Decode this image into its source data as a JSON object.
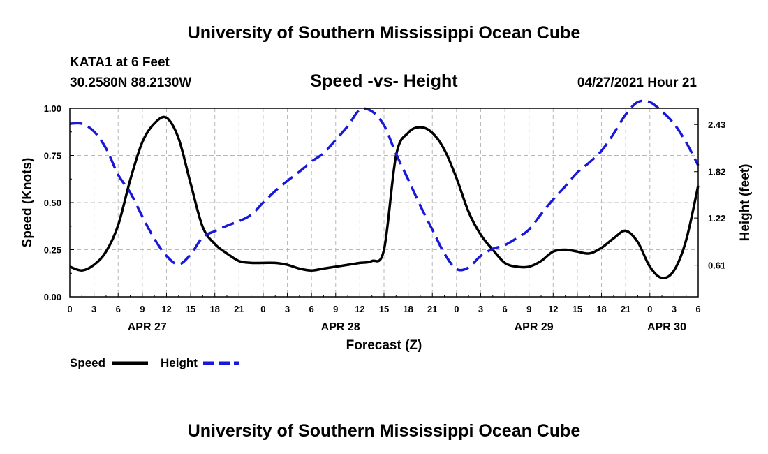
{
  "header": {
    "top_title": "University of Southern Mississippi Ocean Cube",
    "bottom_title": "University of Southern Mississippi Ocean Cube",
    "station": "KATA1 at 6 Feet",
    "coords": "30.2580N  88.2130W",
    "datetime": "04/27/2021 Hour 21"
  },
  "chart_data": {
    "type": "line",
    "title": "Speed -vs- Height",
    "xlabel": "Forecast (Z)",
    "ylabel": "Speed (Knots)",
    "y2label": "Height (feet)",
    "xlim": [
      0,
      78
    ],
    "ylim": [
      0,
      1.0
    ],
    "y2lim": [
      0.2,
      2.64
    ],
    "hour_ticks": [
      "0",
      "3",
      "6",
      "9",
      "12",
      "15",
      "18",
      "21",
      "0",
      "3",
      "6",
      "9",
      "12",
      "15",
      "18",
      "21",
      "0",
      "3",
      "6",
      "9",
      "12",
      "15",
      "18",
      "21",
      "0",
      "3",
      "6"
    ],
    "date_labels": [
      {
        "label": "APR 27",
        "hour": 9.6
      },
      {
        "label": "APR 28",
        "hour": 33.6
      },
      {
        "label": "APR 29",
        "hour": 57.6
      },
      {
        "label": "APR 30",
        "hour": 74.1
      }
    ],
    "y_ticks": [
      "0.00",
      "0.25",
      "0.50",
      "0.75",
      "1.00"
    ],
    "y2_ticks": [
      "0.61",
      "1.22",
      "1.82",
      "2.43"
    ],
    "series": [
      {
        "name": "Speed",
        "axis": "left",
        "color": "#000000",
        "style": "solid",
        "x": [
          0,
          1.5,
          3,
          4.5,
          6,
          7.5,
          9,
          10.5,
          12,
          13.5,
          15,
          16.5,
          18,
          19.5,
          21,
          22.5,
          24,
          25.5,
          27,
          28.5,
          30,
          31.5,
          33,
          34.5,
          36,
          37.5,
          39,
          40.5,
          42,
          43.5,
          45,
          46.5,
          48,
          49.5,
          51,
          52.5,
          54,
          55.5,
          57,
          58.5,
          60,
          61.5,
          63,
          64.5,
          66,
          67.5,
          69,
          70.5,
          72,
          73.5,
          75,
          76.5,
          78
        ],
        "values": [
          0.16,
          0.14,
          0.17,
          0.24,
          0.38,
          0.62,
          0.82,
          0.92,
          0.95,
          0.84,
          0.6,
          0.37,
          0.28,
          0.23,
          0.19,
          0.18,
          0.18,
          0.18,
          0.17,
          0.15,
          0.14,
          0.15,
          0.16,
          0.17,
          0.18,
          0.19,
          0.25,
          0.75,
          0.87,
          0.9,
          0.87,
          0.78,
          0.63,
          0.45,
          0.33,
          0.25,
          0.18,
          0.16,
          0.16,
          0.19,
          0.24,
          0.25,
          0.24,
          0.23,
          0.26,
          0.31,
          0.35,
          0.29,
          0.16,
          0.1,
          0.14,
          0.3,
          0.59
        ]
      },
      {
        "name": "Height",
        "axis": "right",
        "color": "#1818d8",
        "style": "dashed",
        "x": [
          0,
          1.5,
          3,
          4.5,
          6,
          7.5,
          9,
          10.5,
          12,
          13.5,
          15,
          16.5,
          18,
          19.5,
          21,
          22.5,
          24,
          25.5,
          27,
          28.5,
          30,
          31.5,
          33,
          34.5,
          36,
          37.5,
          39,
          40.5,
          42,
          43.5,
          45,
          46.5,
          48,
          49.5,
          51,
          52.5,
          54,
          55.5,
          57,
          58.5,
          60,
          61.5,
          63,
          64.5,
          66,
          67.5,
          69,
          70.5,
          72,
          73.5,
          75,
          76.5,
          78
        ],
        "values": [
          2.44,
          2.44,
          2.34,
          2.12,
          1.78,
          1.55,
          1.24,
          0.95,
          0.73,
          0.62,
          0.75,
          0.97,
          1.05,
          1.12,
          1.18,
          1.26,
          1.42,
          1.57,
          1.7,
          1.82,
          1.95,
          2.06,
          2.23,
          2.41,
          2.62,
          2.6,
          2.42,
          2.05,
          1.72,
          1.38,
          1.07,
          0.76,
          0.56,
          0.58,
          0.73,
          0.82,
          0.87,
          0.96,
          1.07,
          1.27,
          1.46,
          1.63,
          1.81,
          1.94,
          2.09,
          2.31,
          2.56,
          2.72,
          2.72,
          2.6,
          2.44,
          2.2,
          1.9
        ]
      }
    ],
    "legend": [
      {
        "label": "Speed",
        "color": "#000000",
        "style": "solid"
      },
      {
        "label": "Height",
        "color": "#1818d8",
        "style": "dashed"
      }
    ]
  }
}
